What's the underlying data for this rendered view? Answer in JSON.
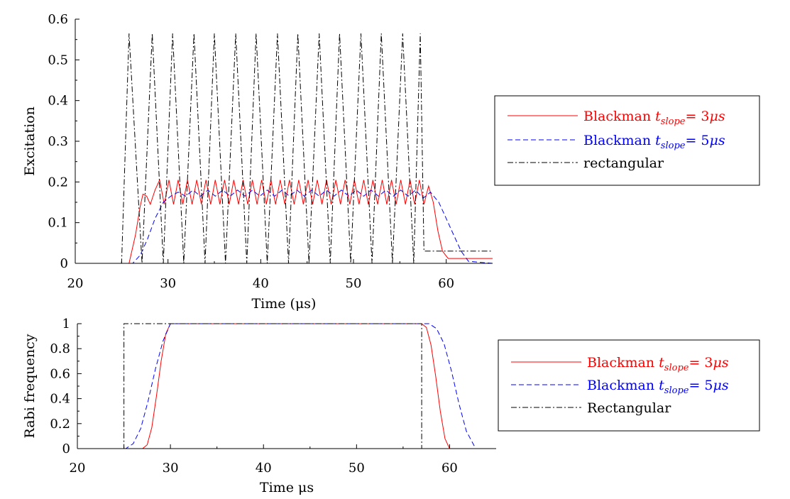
{
  "chart_data": [
    {
      "type": "line",
      "xlabel": "Time (μs)",
      "ylabel": "Excitation",
      "xlim": [
        20,
        65
      ],
      "ylim": [
        0,
        0.6
      ],
      "x_ticks": [
        "20",
        "30",
        "40",
        "50",
        "60"
      ],
      "y_ticks": [
        "0",
        "0.1",
        "0.2",
        "0.3",
        "0.4",
        "0.5",
        "0.6"
      ],
      "legend": {
        "placement": "right",
        "entries": [
          {
            "label": "Blackman",
            "sub": "slope",
            "eq": "= 3",
            "unit": "μs",
            "color": "#ff0000",
            "style": "solid"
          },
          {
            "label": "Blackman",
            "sub": "slope",
            "eq": "= 5",
            "unit": "μs",
            "color": "#0000ff",
            "style": "dashed"
          },
          {
            "label": "rectangular",
            "color": "#000000",
            "style": "dashdot"
          }
        ]
      },
      "series": [
        {
          "style": "solid",
          "color": "#ff0000",
          "x": [
            20,
            25.8,
            26.5,
            27,
            27.3,
            27.7,
            28.1,
            28.6,
            29.1,
            29.6,
            30.1,
            30.6,
            31.1,
            31.6,
            32.1,
            32.6,
            33.1,
            33.6,
            34.1,
            34.6,
            35.1,
            35.6,
            36.1,
            36.6,
            37.1,
            37.6,
            38.1,
            38.6,
            39.1,
            39.6,
            40.1,
            40.6,
            41.1,
            41.6,
            42.1,
            42.6,
            43.1,
            43.6,
            44.1,
            44.6,
            45.1,
            45.6,
            46.1,
            46.6,
            47.1,
            47.6,
            48.1,
            48.6,
            49.1,
            49.6,
            50.1,
            50.6,
            51.1,
            51.6,
            52.1,
            52.6,
            53.1,
            53.6,
            54.1,
            54.6,
            55.1,
            55.6,
            56.1,
            56.6,
            57.1,
            57.6,
            58.1,
            58.6,
            59.1,
            59.6,
            60.2,
            61,
            65
          ],
          "y": [
            0,
            0,
            0.07,
            0.14,
            0.17,
            0.165,
            0.145,
            0.18,
            0.205,
            0.145,
            0.205,
            0.145,
            0.205,
            0.145,
            0.205,
            0.145,
            0.205,
            0.145,
            0.205,
            0.145,
            0.205,
            0.145,
            0.205,
            0.145,
            0.205,
            0.145,
            0.205,
            0.145,
            0.205,
            0.145,
            0.205,
            0.145,
            0.205,
            0.145,
            0.205,
            0.145,
            0.205,
            0.145,
            0.205,
            0.145,
            0.205,
            0.145,
            0.205,
            0.145,
            0.205,
            0.145,
            0.205,
            0.145,
            0.205,
            0.145,
            0.205,
            0.145,
            0.205,
            0.145,
            0.205,
            0.145,
            0.205,
            0.145,
            0.205,
            0.145,
            0.205,
            0.145,
            0.205,
            0.145,
            0.205,
            0.145,
            0.19,
            0.15,
            0.08,
            0.03,
            0.012,
            0.012,
            0.012
          ]
        },
        {
          "style": "dashed",
          "color": "#0000ff",
          "x": [
            20,
            26.2,
            27,
            27.8,
            28.6,
            29.5,
            30.3,
            31.1,
            31.9,
            32.7,
            33.5,
            34.3,
            35.1,
            35.9,
            36.7,
            37.5,
            38.3,
            39.1,
            39.9,
            40.7,
            41.5,
            42.3,
            43.1,
            43.9,
            44.7,
            45.5,
            46.3,
            47.1,
            47.9,
            48.7,
            49.5,
            50.3,
            51.1,
            51.9,
            52.7,
            53.5,
            54.3,
            55.1,
            55.9,
            56.7,
            57.5,
            58.3,
            59.2,
            60,
            60.8,
            61.6,
            62.4,
            65
          ],
          "y": [
            0,
            0,
            0.02,
            0.06,
            0.11,
            0.15,
            0.165,
            0.175,
            0.165,
            0.18,
            0.165,
            0.18,
            0.165,
            0.18,
            0.165,
            0.18,
            0.165,
            0.18,
            0.165,
            0.18,
            0.165,
            0.18,
            0.165,
            0.18,
            0.165,
            0.18,
            0.165,
            0.18,
            0.165,
            0.18,
            0.165,
            0.18,
            0.165,
            0.18,
            0.165,
            0.18,
            0.165,
            0.18,
            0.165,
            0.18,
            0.16,
            0.175,
            0.15,
            0.11,
            0.07,
            0.03,
            0.005,
            0
          ]
        },
        {
          "style": "dashdot",
          "color": "#000000",
          "x": [
            20,
            25,
            25.8,
            27.2,
            28.3,
            29.5,
            30.5,
            31.7,
            32.8,
            34,
            35,
            36.2,
            37.3,
            38.5,
            39.5,
            40.7,
            41.8,
            43,
            44,
            45.2,
            46.3,
            47.5,
            48.5,
            49.7,
            50.8,
            52,
            53,
            54.2,
            55.3,
            56.5,
            57.2,
            57.6,
            57.6,
            65
          ],
          "y": [
            0,
            0,
            0.565,
            0,
            0.565,
            0,
            0.565,
            0,
            0.565,
            0,
            0.565,
            0,
            0.565,
            0,
            0.565,
            0,
            0.565,
            0,
            0.565,
            0,
            0.565,
            0,
            0.565,
            0,
            0.565,
            0,
            0.565,
            0,
            0.565,
            0,
            0.565,
            0.03,
            0.03,
            0.03
          ]
        }
      ]
    },
    {
      "type": "line",
      "xlabel": "Time μs",
      "ylabel": "Rabi frequency",
      "xlim": [
        20,
        65
      ],
      "ylim": [
        0,
        1
      ],
      "x_ticks": [
        "20",
        "30",
        "40",
        "50",
        "60"
      ],
      "y_ticks": [
        "0",
        "0.2",
        "0.4",
        "0.6",
        "0.8",
        "1"
      ],
      "legend": {
        "placement": "right",
        "entries": [
          {
            "label": "Blackman",
            "sub": "slope",
            "eq": "= 3",
            "unit": "μs",
            "color": "#ff0000",
            "style": "solid"
          },
          {
            "label": "Blackman",
            "sub": "slope",
            "eq": "= 5",
            "unit": "μs",
            "color": "#0000ff",
            "style": "dashed"
          },
          {
            "label": "Rectangular",
            "color": "#000000",
            "style": "dashdot"
          }
        ]
      },
      "series": [
        {
          "style": "solid",
          "color": "#ff0000",
          "x": [
            20,
            27,
            27.5,
            28,
            28.5,
            29,
            29.5,
            30,
            57,
            57.5,
            58,
            58.5,
            59,
            59.5,
            60,
            65
          ],
          "y": [
            0,
            0,
            0.03,
            0.17,
            0.42,
            0.7,
            0.92,
            1,
            1,
            0.97,
            0.83,
            0.58,
            0.3,
            0.08,
            0,
            0
          ]
        },
        {
          "style": "dashed",
          "color": "#0000ff",
          "x": [
            20,
            25.2,
            26,
            26.8,
            27.6,
            28.4,
            29.2,
            30,
            57.8,
            58.6,
            59.4,
            60.2,
            61,
            61.8,
            62.8,
            65
          ],
          "y": [
            0,
            0,
            0.04,
            0.16,
            0.38,
            0.64,
            0.86,
            1,
            1,
            0.96,
            0.84,
            0.62,
            0.36,
            0.14,
            0,
            0
          ]
        },
        {
          "style": "dashdot",
          "color": "#000000",
          "x": [
            20,
            25,
            25,
            57,
            57,
            65
          ],
          "y": [
            0,
            0,
            1,
            1,
            0,
            0
          ]
        }
      ]
    }
  ]
}
